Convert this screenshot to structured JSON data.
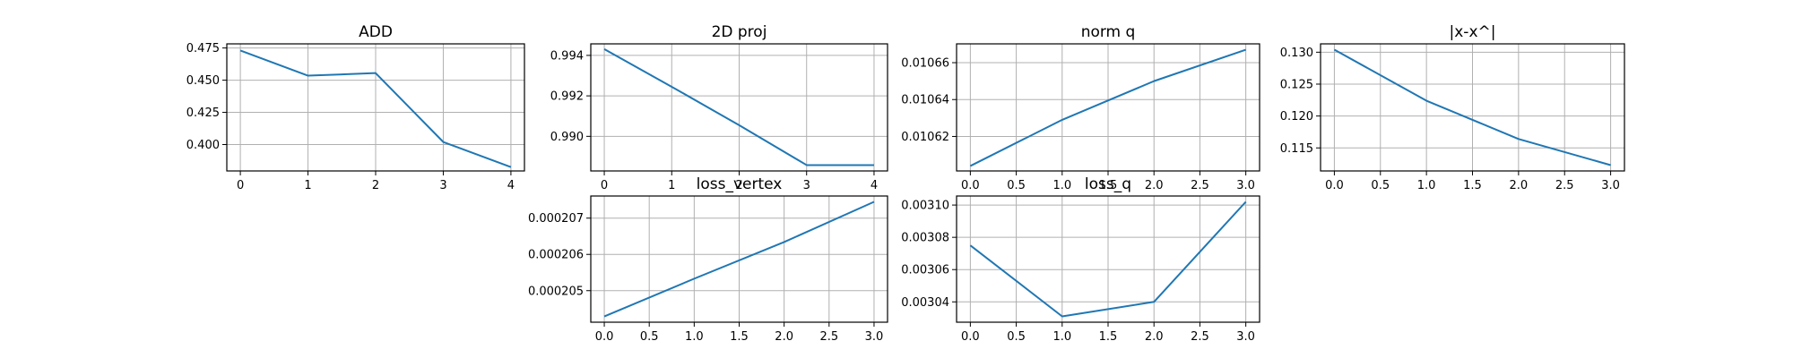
{
  "chart_data": [
    {
      "type": "line",
      "title": "ADD",
      "x": [
        0,
        1,
        2,
        3,
        4
      ],
      "series": [
        {
          "values": [
            0.473,
            0.4535,
            0.4555,
            0.402,
            0.3825
          ]
        }
      ],
      "xlim": [
        -0.2,
        4.2
      ],
      "ylim": [
        0.3795,
        0.4782
      ],
      "xticks": [
        0,
        1,
        2,
        3,
        4
      ],
      "xtick_labels": [
        "0",
        "1",
        "2",
        "3",
        "4"
      ],
      "yticks": [
        0.4,
        0.425,
        0.45,
        0.475
      ],
      "ytick_labels": [
        "0.400",
        "0.425",
        "0.450",
        "0.475"
      ],
      "grid": true,
      "color": "#1f77b4"
    },
    {
      "type": "line",
      "title": "2D proj",
      "x": [
        0,
        1,
        2,
        3,
        4
      ],
      "series": [
        {
          "values": [
            0.99431,
            0.99245,
            0.99055,
            0.98858,
            0.98858
          ]
        }
      ],
      "xlim": [
        -0.2,
        4.2
      ],
      "ylim": [
        0.98829,
        0.99457
      ],
      "xticks": [
        0,
        1,
        2,
        3,
        4
      ],
      "xtick_labels": [
        "0",
        "1",
        "2",
        "3",
        "4"
      ],
      "yticks": [
        0.99,
        0.992,
        0.994
      ],
      "ytick_labels": [
        "0.990",
        "0.992",
        "0.994"
      ],
      "grid": true,
      "color": "#1f77b4"
    },
    {
      "type": "line",
      "title": "norm q",
      "x": [
        0,
        1,
        2,
        3
      ],
      "series": [
        {
          "values": [
            0.010604,
            0.010629,
            0.01065,
            0.010667
          ]
        }
      ],
      "xlim": [
        -0.15,
        3.15
      ],
      "ylim": [
        0.0106013,
        0.0106702
      ],
      "xticks": [
        0,
        0.5,
        1,
        1.5,
        2,
        2.5,
        3
      ],
      "xtick_labels": [
        "0.0",
        "0.5",
        "1.0",
        "1.5",
        "2.0",
        "2.5",
        "3.0"
      ],
      "yticks": [
        0.01062,
        0.01064,
        0.01066
      ],
      "ytick_labels": [
        "0.01062",
        "0.01064",
        "0.01066"
      ],
      "grid": true,
      "color": "#1f77b4"
    },
    {
      "type": "line",
      "title": "|x-x^|",
      "x": [
        0,
        1,
        2,
        3
      ],
      "series": [
        {
          "values": [
            0.1304,
            0.1224,
            0.1164,
            0.1123
          ]
        }
      ],
      "xlim": [
        -0.15,
        3.15
      ],
      "ylim": [
        0.11139,
        0.13131
      ],
      "xticks": [
        0,
        0.5,
        1,
        1.5,
        2,
        2.5,
        3
      ],
      "xtick_labels": [
        "0.0",
        "0.5",
        "1.0",
        "1.5",
        "2.0",
        "2.5",
        "3.0"
      ],
      "yticks": [
        0.115,
        0.12,
        0.125,
        0.13
      ],
      "ytick_labels": [
        "0.115",
        "0.120",
        "0.125",
        "0.130"
      ],
      "grid": true,
      "color": "#1f77b4"
    },
    {
      "type": "line",
      "title": "loss_vertex",
      "x": [
        0,
        1,
        2,
        3
      ],
      "series": [
        {
          "values": [
            0.00020429,
            0.00020533,
            0.00020634,
            0.00020745
          ]
        }
      ],
      "xlim": [
        -0.15,
        3.15
      ],
      "ylim": [
        0.00020413,
        0.00020761
      ],
      "xticks": [
        0,
        0.5,
        1,
        1.5,
        2,
        2.5,
        3
      ],
      "xtick_labels": [
        "0.0",
        "0.5",
        "1.0",
        "1.5",
        "2.0",
        "2.5",
        "3.0"
      ],
      "yticks": [
        0.000205,
        0.000206,
        0.000207
      ],
      "ytick_labels": [
        "0.000205",
        "0.000206",
        "0.000207"
      ],
      "grid": true,
      "color": "#1f77b4"
    },
    {
      "type": "line",
      "title": "loss_q",
      "x": [
        0,
        1,
        2,
        3
      ],
      "series": [
        {
          "values": [
            0.003075,
            0.003031,
            0.00304,
            0.003102
          ]
        }
      ],
      "xlim": [
        -0.15,
        3.15
      ],
      "ylim": [
        0.0030274,
        0.0031056
      ],
      "xticks": [
        0,
        0.5,
        1,
        1.5,
        2,
        2.5,
        3
      ],
      "xtick_labels": [
        "0.0",
        "0.5",
        "1.0",
        "1.5",
        "2.0",
        "2.5",
        "3.0"
      ],
      "yticks": [
        0.00304,
        0.00306,
        0.00308,
        0.0031
      ],
      "ytick_labels": [
        "0.00304",
        "0.00306",
        "0.00308",
        "0.00310"
      ],
      "grid": true,
      "color": "#1f77b4"
    }
  ]
}
